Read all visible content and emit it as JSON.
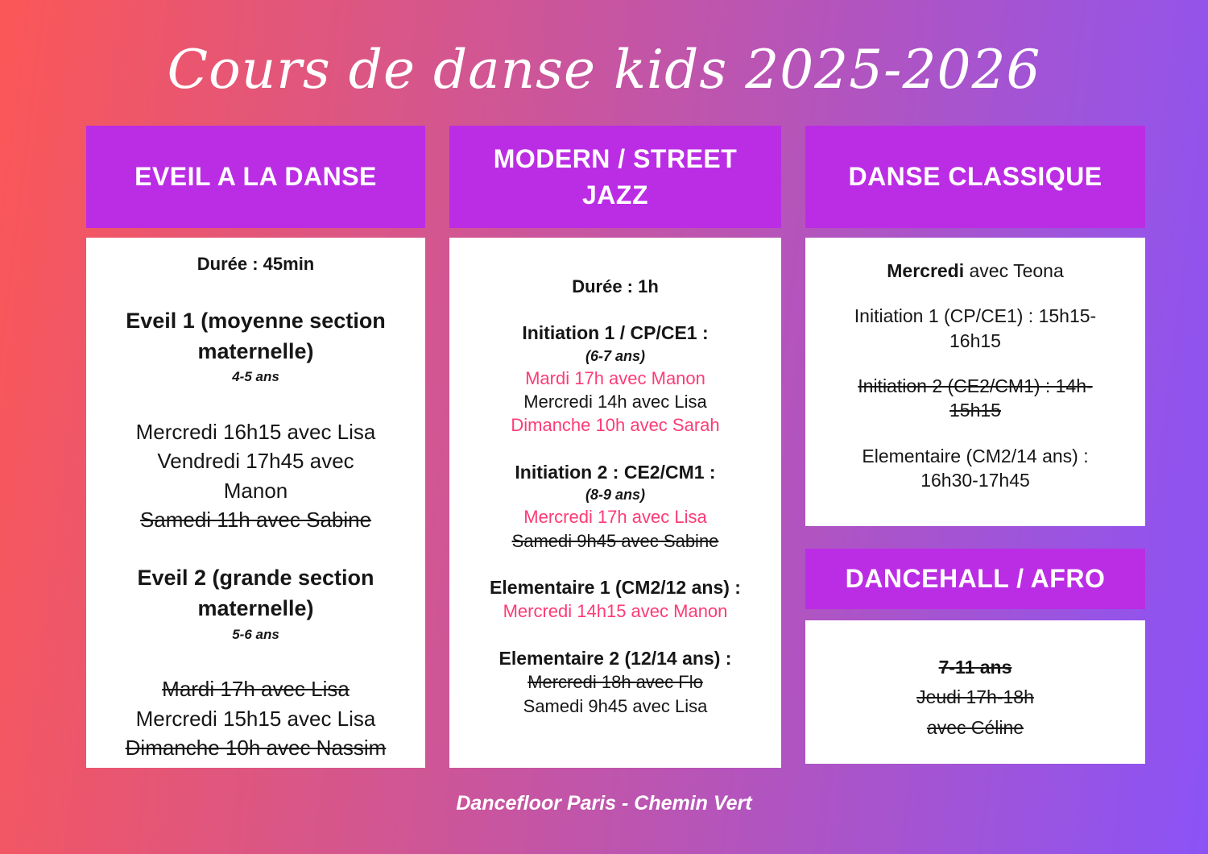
{
  "title": "Cours de danse kids 2025-2026",
  "footer": "Dancefloor Paris - Chemin Vert",
  "colors": {
    "background_gradient_start": "#fb5757",
    "background_gradient_end": "#8b53f6",
    "header_bar": "#bb2de4",
    "card_background": "#ffffff",
    "text": "#161616",
    "highlight_pink": "#fd3b76"
  },
  "columns": [
    {
      "id": "eveil-a-la-danse",
      "sections": [
        {
          "header": "EVEIL A LA DANSE",
          "card_variant": "tall",
          "blocks": [
            {
              "lines": [
                {
                  "kind": "duration",
                  "text": "Durée : 45min"
                }
              ]
            },
            {
              "lines": [
                {
                  "kind": "title",
                  "text": "Eveil 1 (moyenne section\nmaternelle)"
                },
                {
                  "kind": "age",
                  "text": "4-5 ans"
                }
              ]
            },
            {
              "lines": [
                {
                  "text": "Mercredi 16h15 avec Lisa"
                },
                {
                  "text": "Vendredi 17h45 avec\nManon"
                },
                {
                  "text": "Samedi 11h avec Sabine",
                  "strike": true
                }
              ]
            },
            {
              "lines": [
                {
                  "kind": "title",
                  "text": "Eveil 2 (grande section\nmaternelle)"
                },
                {
                  "kind": "age",
                  "text": "5-6 ans"
                }
              ]
            },
            {
              "lines": [
                {
                  "text": "Mardi 17h avec Lisa",
                  "strike": true
                },
                {
                  "text": "Mercredi 15h15 avec Lisa"
                },
                {
                  "text": "Dimanche 10h avec Nassim",
                  "strike": true
                }
              ]
            }
          ]
        }
      ]
    },
    {
      "id": "modern-street-jazz",
      "sections": [
        {
          "header": "MODERN / STREET\nJAZZ",
          "card_variant": "tall",
          "blocks": [
            {
              "lines": [
                {
                  "kind": "duration",
                  "text": "Durée : 1h"
                }
              ]
            },
            {
              "lines": [
                {
                  "kind": "title",
                  "text": "Initiation 1 / CP/CE1 :"
                },
                {
                  "kind": "age",
                  "text": "(6-7 ans)"
                },
                {
                  "text": "Mardi 17h avec Manon",
                  "pink": true
                },
                {
                  "text": "Mercredi 14h avec Lisa"
                },
                {
                  "text": "Dimanche 10h avec Sarah",
                  "pink": true
                }
              ]
            },
            {
              "lines": [
                {
                  "kind": "title",
                  "text": "Initiation 2 : CE2/CM1 :"
                },
                {
                  "kind": "age",
                  "text": "(8-9 ans)"
                },
                {
                  "text": "Mercredi 17h avec Lisa",
                  "pink": true
                },
                {
                  "text": "Samedi 9h45 avec Sabine",
                  "strike": true
                }
              ]
            },
            {
              "lines": [
                {
                  "kind": "title",
                  "text": "Elementaire 1 (CM2/12 ans) :"
                },
                {
                  "text": "Mercredi 14h15 avec Manon",
                  "pink": true
                }
              ]
            },
            {
              "lines": [
                {
                  "kind": "title",
                  "text": "Elementaire 2 (12/14 ans) :"
                },
                {
                  "text": "Mercredi 18h avec Flo",
                  "strike": true
                },
                {
                  "text": "Samedi 9h45 avec Lisa"
                }
              ]
            }
          ]
        }
      ]
    },
    {
      "id": "danse-classique",
      "sections": [
        {
          "header": "DANSE CLASSIQUE",
          "card_variant": "main",
          "blocks": [
            {
              "lines": [
                {
                  "segments": [
                    {
                      "text": "Mercredi ",
                      "bold": true
                    },
                    {
                      "text": "avec Teona"
                    }
                  ]
                }
              ]
            },
            {
              "lines": [
                {
                  "text": "Initiation 1 (CP/CE1) : 15h15-\n16h15"
                }
              ]
            },
            {
              "lines": [
                {
                  "text": "Initiation 2 (CE2/CM1) : 14h-\n15h15",
                  "strike": true
                }
              ]
            },
            {
              "lines": [
                {
                  "text": "Elementaire (CM2/14 ans) :\n16h30-17h45"
                }
              ]
            }
          ]
        },
        {
          "header": "DANCEHALL / AFRO",
          "compact": true,
          "card_variant": "short",
          "blocks": [
            {
              "lines": [
                {
                  "text": "7-11 ans",
                  "bold": true,
                  "strike": true
                },
                {
                  "text": "Jeudi 17h-18h",
                  "strike": true
                },
                {
                  "text": "avec Céline",
                  "strike": true
                }
              ]
            }
          ]
        }
      ]
    }
  ]
}
